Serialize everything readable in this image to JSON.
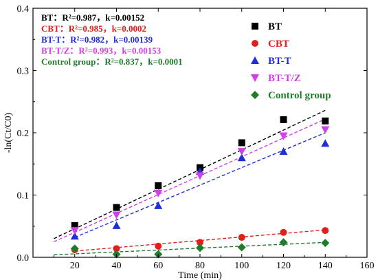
{
  "chart_data": {
    "type": "scatter",
    "xlabel": "Time (min)",
    "ylabel": "-ln(Ct/C0)",
    "xlim": [
      0,
      160
    ],
    "ylim": [
      0,
      0.4
    ],
    "x_ticks": [
      20,
      40,
      60,
      80,
      100,
      120,
      140,
      160
    ],
    "y_ticks": [
      0.0,
      0.1,
      0.2,
      0.3,
      0.4
    ],
    "y_tick_labels": [
      "0.0",
      "0.1",
      "0.2",
      "0.3",
      "0.4"
    ],
    "grid": false,
    "legend_position": "top-right",
    "series": [
      {
        "name": "BT",
        "color": "#000000",
        "marker": "square",
        "x": [
          20,
          40,
          60,
          80,
          100,
          120,
          140
        ],
        "y": [
          0.051,
          0.08,
          0.115,
          0.144,
          0.184,
          0.221,
          0.219
        ],
        "fit": {
          "x": [
            10,
            140
          ],
          "y": [
            0.03,
            0.236
          ]
        }
      },
      {
        "name": "CBT",
        "color": "#e0201b",
        "marker": "circle",
        "x": [
          20,
          40,
          60,
          80,
          100,
          120,
          140
        ],
        "y": [
          0.012,
          0.014,
          0.018,
          0.024,
          0.032,
          0.04,
          0.043
        ],
        "fit": {
          "x": [
            20,
            140
          ],
          "y": [
            0.01,
            0.044
          ]
        }
      },
      {
        "name": "BT-T",
        "color": "#1f2fd6",
        "marker": "triangle-up",
        "x": [
          20,
          40,
          60,
          80,
          100,
          120,
          140
        ],
        "y": [
          0.034,
          0.051,
          0.083,
          0.138,
          0.16,
          0.17,
          0.183
        ],
        "fit": {
          "x": [
            20,
            140
          ],
          "y": [
            0.032,
            0.2
          ]
        }
      },
      {
        "name": "BT-T/Z",
        "color": "#d23fe8",
        "marker": "triangle-down",
        "x": [
          20,
          40,
          60,
          80,
          100,
          120,
          140
        ],
        "y": [
          0.043,
          0.068,
          0.103,
          0.131,
          0.17,
          0.195,
          0.205
        ],
        "fit": {
          "x": [
            10,
            140
          ],
          "y": [
            0.025,
            0.222
          ]
        }
      },
      {
        "name": "Control group",
        "color": "#1e7d2a",
        "marker": "diamond",
        "x": [
          20,
          40,
          60,
          80,
          100,
          120,
          140
        ],
        "y": [
          0.014,
          0.005,
          0.005,
          0.015,
          0.016,
          0.024,
          0.023
        ],
        "fit": {
          "x": [
            10,
            140
          ],
          "y": [
            0.004,
            0.024
          ]
        }
      }
    ],
    "annotations": [
      {
        "text": "BT：R²=0.987，k=0.00152",
        "color": "#000000"
      },
      {
        "text": "CBT：R²=0.985，k=0.0002",
        "color": "#e0201b"
      },
      {
        "text": "BT-T：R²=0.982，k=0.00139",
        "color": "#1f2fd6"
      },
      {
        "text": "BT-T/Z：R²=0.993，k=0.00153",
        "color": "#d23fe8"
      },
      {
        "text": "Control group：R²=0.837，k=0.0001",
        "color": "#1e7d2a"
      }
    ]
  }
}
